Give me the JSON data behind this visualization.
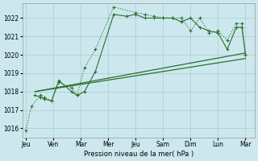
{
  "background_color": "#cce8ee",
  "grid_color": "#aacccc",
  "line_color": "#2d6e2d",
  "ylim": [
    1015.5,
    1022.8
  ],
  "yticks": [
    1016,
    1017,
    1018,
    1019,
    1020,
    1021,
    1022
  ],
  "xlabel": "Pression niveau de la mer( hPa )",
  "x_major_positions": [
    0,
    1.5,
    3,
    4.5,
    6,
    7.5,
    9,
    10.5,
    12
  ],
  "x_major_labels": [
    "Jeu",
    "Ven",
    "Mar",
    "Mer",
    "Jeu",
    "Sam",
    "Dim",
    "Lun",
    "Mar"
  ],
  "xlim": [
    -0.2,
    12.5
  ],
  "line1_x": [
    0,
    0.3,
    0.8,
    1.0,
    1.4,
    1.8,
    2.5,
    2.8,
    3.2,
    3.8,
    4.8,
    6.0,
    6.5,
    7.0,
    7.5,
    8.0,
    8.5,
    9.0,
    9.5,
    10.0,
    10.5,
    11.0,
    11.5,
    11.8,
    12.0
  ],
  "line1_y": [
    1015.9,
    1017.2,
    1017.8,
    1017.7,
    1017.5,
    1018.5,
    1018.2,
    1017.8,
    1019.3,
    1020.3,
    1022.6,
    1022.3,
    1022.2,
    1022.1,
    1022.0,
    1022.0,
    1022.0,
    1021.3,
    1022.0,
    1021.2,
    1021.3,
    1020.8,
    1021.7,
    1021.7,
    1020.0
  ],
  "line2_x": [
    0.5,
    0.8,
    1.0,
    1.4,
    1.8,
    2.5,
    2.8,
    3.2,
    3.8,
    4.8,
    5.5,
    6.0,
    6.5,
    7.0,
    7.5,
    8.0,
    8.5,
    9.0,
    9.5,
    10.0,
    10.5,
    11.0,
    11.5,
    11.8,
    12.0
  ],
  "line2_y": [
    1017.8,
    1017.7,
    1017.6,
    1017.5,
    1018.6,
    1018.0,
    1017.8,
    1018.0,
    1019.1,
    1022.2,
    1022.1,
    1022.2,
    1022.0,
    1022.0,
    1022.0,
    1022.0,
    1021.8,
    1022.0,
    1021.5,
    1021.3,
    1021.2,
    1020.3,
    1021.5,
    1021.5,
    1020.0
  ],
  "line3_x": [
    0.5,
    12.0
  ],
  "line3_y": [
    1018.0,
    1019.8
  ],
  "line4_x": [
    0.5,
    12.0
  ],
  "line4_y": [
    1018.0,
    1020.1
  ]
}
